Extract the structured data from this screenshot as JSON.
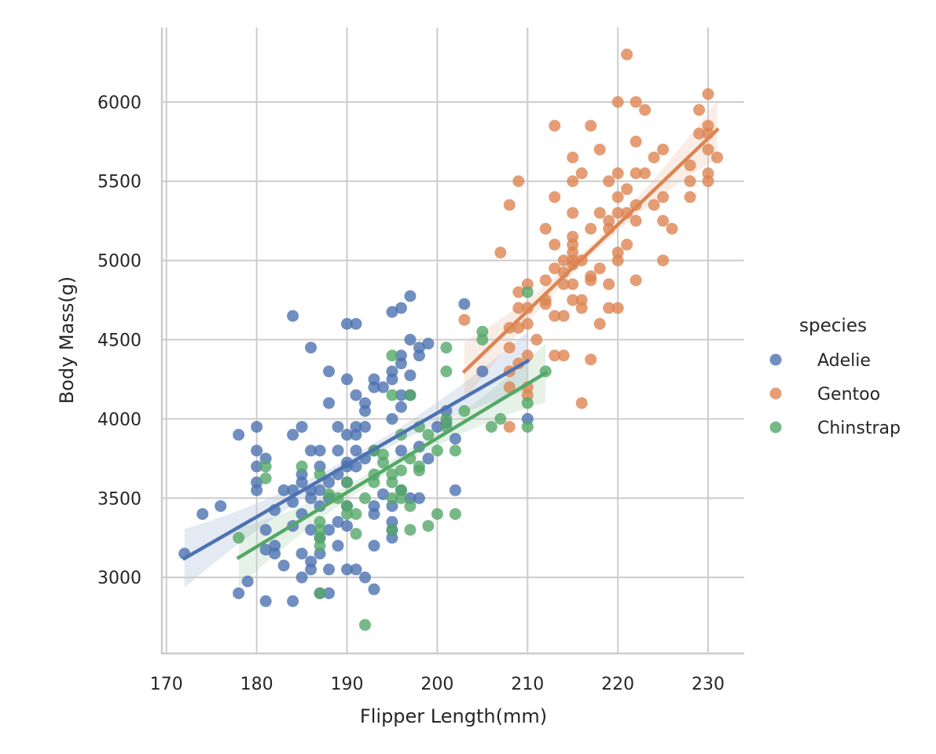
{
  "chart_data": {
    "type": "scatter",
    "xlabel": "Flipper Length(mm)",
    "ylabel": "Body Mass(g)",
    "xlim": [
      169.5,
      234
    ],
    "ylim": [
      2520,
      6470
    ],
    "xticks": [
      170,
      180,
      190,
      200,
      210,
      220,
      230
    ],
    "yticks": [
      3000,
      3500,
      4000,
      4500,
      5000,
      5500,
      6000
    ],
    "grid": true,
    "legend": {
      "title": "species",
      "placement": "right"
    },
    "series": [
      {
        "name": "Adelie",
        "color": "#4c72b0",
        "fit": {
          "x": [
            172,
            210
          ],
          "y": [
            3120,
            4365
          ]
        },
        "points": [
          [
            172,
            3150
          ],
          [
            174,
            3400
          ],
          [
            176,
            3450
          ],
          [
            178,
            3900
          ],
          [
            178,
            2900
          ],
          [
            179,
            2975
          ],
          [
            180,
            3950
          ],
          [
            180,
            3800
          ],
          [
            180,
            3700
          ],
          [
            180,
            3600
          ],
          [
            180,
            3550
          ],
          [
            181,
            3750
          ],
          [
            181,
            3300
          ],
          [
            181,
            3175
          ],
          [
            181,
            2850
          ],
          [
            182,
            3200
          ],
          [
            182,
            3150
          ],
          [
            182,
            3425
          ],
          [
            183,
            3550
          ],
          [
            183,
            3075
          ],
          [
            184,
            4650
          ],
          [
            184,
            3900
          ],
          [
            184,
            3550
          ],
          [
            184,
            3475
          ],
          [
            184,
            3325
          ],
          [
            184,
            2850
          ],
          [
            185,
            3950
          ],
          [
            185,
            3650
          ],
          [
            185,
            3600
          ],
          [
            185,
            3400
          ],
          [
            185,
            3150
          ],
          [
            185,
            3000
          ],
          [
            186,
            4450
          ],
          [
            186,
            3800
          ],
          [
            186,
            3550
          ],
          [
            186,
            3500
          ],
          [
            186,
            3300
          ],
          [
            186,
            3100
          ],
          [
            186,
            3050
          ],
          [
            187,
            3800
          ],
          [
            187,
            3700
          ],
          [
            187,
            3550
          ],
          [
            187,
            3450
          ],
          [
            187,
            3250
          ],
          [
            187,
            3150
          ],
          [
            187,
            2900
          ],
          [
            188,
            4300
          ],
          [
            188,
            4100
          ],
          [
            188,
            3600
          ],
          [
            188,
            3500
          ],
          [
            188,
            3300
          ],
          [
            188,
            3050
          ],
          [
            188,
            2900
          ],
          [
            189,
            3950
          ],
          [
            189,
            3800
          ],
          [
            189,
            3650
          ],
          [
            189,
            3350
          ],
          [
            189,
            3200
          ],
          [
            190,
            4600
          ],
          [
            190,
            4250
          ],
          [
            190,
            3900
          ],
          [
            190,
            3725
          ],
          [
            190,
            3700
          ],
          [
            190,
            3600
          ],
          [
            190,
            3450
          ],
          [
            190,
            3325
          ],
          [
            190,
            3050
          ],
          [
            191,
            4600
          ],
          [
            191,
            4150
          ],
          [
            191,
            3950
          ],
          [
            191,
            3900
          ],
          [
            191,
            3800
          ],
          [
            191,
            3700
          ],
          [
            191,
            3050
          ],
          [
            192,
            4100
          ],
          [
            192,
            4050
          ],
          [
            192,
            3950
          ],
          [
            192,
            3750
          ],
          [
            192,
            3000
          ],
          [
            193,
            4250
          ],
          [
            193,
            4200
          ],
          [
            193,
            3800
          ],
          [
            193,
            3450
          ],
          [
            193,
            3400
          ],
          [
            193,
            3200
          ],
          [
            193,
            2925
          ],
          [
            194,
            4200
          ],
          [
            194,
            3525
          ],
          [
            195,
            4675
          ],
          [
            195,
            4300
          ],
          [
            195,
            4250
          ],
          [
            195,
            4000
          ],
          [
            195,
            3450
          ],
          [
            195,
            3350
          ],
          [
            195,
            3300
          ],
          [
            195,
            3250
          ],
          [
            196,
            4700
          ],
          [
            196,
            4400
          ],
          [
            196,
            4350
          ],
          [
            196,
            4150
          ],
          [
            196,
            4075
          ],
          [
            196,
            3800
          ],
          [
            196,
            3550
          ],
          [
            197,
            4775
          ],
          [
            197,
            4500
          ],
          [
            197,
            4275
          ],
          [
            197,
            4150
          ],
          [
            197,
            3500
          ],
          [
            198,
            4450
          ],
          [
            198,
            4400
          ],
          [
            198,
            3825
          ],
          [
            198,
            3500
          ],
          [
            199,
            4475
          ],
          [
            199,
            3750
          ],
          [
            200,
            3950
          ],
          [
            201,
            4050
          ],
          [
            201,
            3975
          ],
          [
            202,
            3875
          ],
          [
            202,
            3550
          ],
          [
            203,
            4725
          ],
          [
            205,
            4300
          ],
          [
            210,
            4000
          ]
        ]
      },
      {
        "name": "Gentoo",
        "color": "#dd8452",
        "fit": {
          "x": [
            203,
            231
          ],
          "y": [
            4300,
            5825
          ]
        },
        "points": [
          [
            203,
            4625
          ],
          [
            207,
            5050
          ],
          [
            208,
            5350
          ],
          [
            208,
            4575
          ],
          [
            208,
            4450
          ],
          [
            208,
            4300
          ],
          [
            208,
            4200
          ],
          [
            208,
            3950
          ],
          [
            209,
            5500
          ],
          [
            209,
            4800
          ],
          [
            209,
            4700
          ],
          [
            209,
            4575
          ],
          [
            209,
            4350
          ],
          [
            210,
            4850
          ],
          [
            210,
            4700
          ],
          [
            210,
            4600
          ],
          [
            210,
            4400
          ],
          [
            210,
            4200
          ],
          [
            210,
            4150
          ],
          [
            211,
            4500
          ],
          [
            212,
            5200
          ],
          [
            212,
            4875
          ],
          [
            212,
            4750
          ],
          [
            212,
            4725
          ],
          [
            213,
            5850
          ],
          [
            213,
            5400
          ],
          [
            213,
            5100
          ],
          [
            213,
            4950
          ],
          [
            213,
            4650
          ],
          [
            213,
            4400
          ],
          [
            214,
            5000
          ],
          [
            214,
            4925
          ],
          [
            214,
            4850
          ],
          [
            214,
            4650
          ],
          [
            214,
            4400
          ],
          [
            215,
            5650
          ],
          [
            215,
            5500
          ],
          [
            215,
            5300
          ],
          [
            215,
            5150
          ],
          [
            215,
            5100
          ],
          [
            215,
            5050
          ],
          [
            215,
            5000
          ],
          [
            215,
            4975
          ],
          [
            215,
            4850
          ],
          [
            215,
            4750
          ],
          [
            216,
            5550
          ],
          [
            216,
            5000
          ],
          [
            216,
            4750
          ],
          [
            216,
            4700
          ],
          [
            216,
            4100
          ],
          [
            217,
            5850
          ],
          [
            217,
            5200
          ],
          [
            217,
            4900
          ],
          [
            217,
            4875
          ],
          [
            217,
            4375
          ],
          [
            218,
            5700
          ],
          [
            218,
            5300
          ],
          [
            218,
            4950
          ],
          [
            218,
            4600
          ],
          [
            219,
            5500
          ],
          [
            219,
            5250
          ],
          [
            219,
            5200
          ],
          [
            219,
            4850
          ],
          [
            219,
            4700
          ],
          [
            220,
            6000
          ],
          [
            220,
            5550
          ],
          [
            220,
            5400
          ],
          [
            220,
            5300
          ],
          [
            220,
            5050
          ],
          [
            220,
            5000
          ],
          [
            220,
            4700
          ],
          [
            221,
            6300
          ],
          [
            221,
            5450
          ],
          [
            221,
            5300
          ],
          [
            221,
            5100
          ],
          [
            222,
            6000
          ],
          [
            222,
            5750
          ],
          [
            222,
            5550
          ],
          [
            222,
            5350
          ],
          [
            222,
            5250
          ],
          [
            222,
            4875
          ],
          [
            223,
            5950
          ],
          [
            223,
            5550
          ],
          [
            224,
            5650
          ],
          [
            224,
            5350
          ],
          [
            225,
            5700
          ],
          [
            225,
            5400
          ],
          [
            225,
            5250
          ],
          [
            225,
            5000
          ],
          [
            226,
            5200
          ],
          [
            228,
            5600
          ],
          [
            228,
            5500
          ],
          [
            228,
            5400
          ],
          [
            229,
            5950
          ],
          [
            229,
            5800
          ],
          [
            230,
            6050
          ],
          [
            230,
            5850
          ],
          [
            230,
            5800
          ],
          [
            230,
            5700
          ],
          [
            230,
            5550
          ],
          [
            230,
            5500
          ],
          [
            231,
            5650
          ]
        ]
      },
      {
        "name": "Chinstrap",
        "color": "#55a868",
        "fit": {
          "x": [
            178,
            212
          ],
          "y": [
            3125,
            4290
          ]
        },
        "points": [
          [
            178,
            3250
          ],
          [
            181,
            3700
          ],
          [
            181,
            3625
          ],
          [
            185,
            3700
          ],
          [
            187,
            3650
          ],
          [
            187,
            3350
          ],
          [
            187,
            3300
          ],
          [
            187,
            3250
          ],
          [
            187,
            3200
          ],
          [
            187,
            2900
          ],
          [
            188,
            3525
          ],
          [
            189,
            3500
          ],
          [
            190,
            3600
          ],
          [
            190,
            3450
          ],
          [
            190,
            3400
          ],
          [
            191,
            3400
          ],
          [
            191,
            3275
          ],
          [
            192,
            3500
          ],
          [
            192,
            2700
          ],
          [
            193,
            3800
          ],
          [
            193,
            3650
          ],
          [
            193,
            3600
          ],
          [
            194,
            3775
          ],
          [
            194,
            3725
          ],
          [
            195,
            4400
          ],
          [
            195,
            4150
          ],
          [
            195,
            3650
          ],
          [
            195,
            3600
          ],
          [
            195,
            3500
          ],
          [
            195,
            3300
          ],
          [
            196,
            3900
          ],
          [
            196,
            3675
          ],
          [
            196,
            3550
          ],
          [
            196,
            3500
          ],
          [
            197,
            4150
          ],
          [
            197,
            3750
          ],
          [
            197,
            3450
          ],
          [
            197,
            3300
          ],
          [
            198,
            3950
          ],
          [
            198,
            3700
          ],
          [
            198,
            3675
          ],
          [
            199,
            3900
          ],
          [
            199,
            3325
          ],
          [
            200,
            3800
          ],
          [
            200,
            3400
          ],
          [
            201,
            4450
          ],
          [
            201,
            4300
          ],
          [
            201,
            4000
          ],
          [
            201,
            3950
          ],
          [
            202,
            3800
          ],
          [
            202,
            3400
          ],
          [
            203,
            4050
          ],
          [
            205,
            4550
          ],
          [
            205,
            4500
          ],
          [
            206,
            3950
          ],
          [
            207,
            4000
          ],
          [
            210,
            4800
          ],
          [
            210,
            4100
          ],
          [
            210,
            3950
          ],
          [
            212,
            4300
          ]
        ]
      }
    ]
  }
}
